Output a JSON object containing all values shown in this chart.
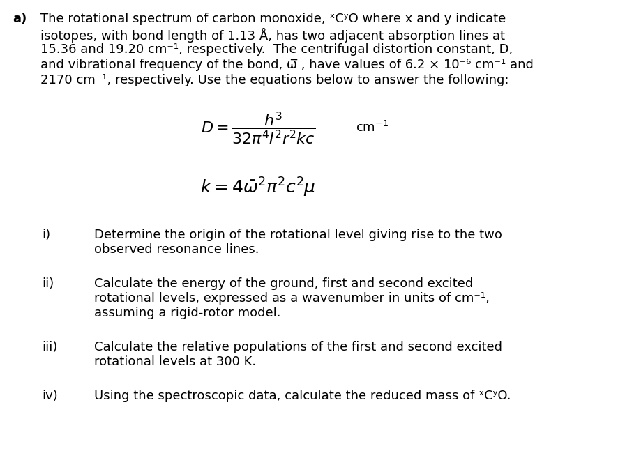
{
  "bg_color": "#ffffff",
  "text_color": "#000000",
  "figsize": [
    8.86,
    6.7
  ],
  "dpi": 100,
  "font_size": 13.0,
  "font_family": "DejaVu Sans",
  "section_label": "a)",
  "intro_lines": [
    "The rotational spectrum of carbon monoxide, ˣCʸO where x and y indicate",
    "isotopes, with bond length of 1.13 Å, has two adjacent absorption lines at",
    "15.36 and 19.20 cm⁻¹, respectively.  The centrifugal distortion constant, D,",
    "and vibrational frequency of the bond, ω̅ , have values of 6.2 × 10⁻⁶ cm⁻¹ and",
    "2170 cm⁻¹, respectively. Use the equations below to answer the following:"
  ],
  "items": [
    {
      "label": "i)",
      "lines": [
        "Determine the origin of the rotational level giving rise to the two",
        "observed resonance lines."
      ]
    },
    {
      "label": "ii)",
      "lines": [
        "Calculate the energy of the ground, first and second excited",
        "rotational levels, expressed as a wavenumber in units of cm⁻¹,",
        "assuming a rigid-rotor model."
      ]
    },
    {
      "label": "iii)",
      "lines": [
        "Calculate the relative populations of the first and second excited",
        "rotational levels at 300 K."
      ]
    },
    {
      "label": "iv)",
      "lines": [
        "Using the spectroscopic data, calculate the reduced mass of ˣCʸO."
      ]
    }
  ]
}
